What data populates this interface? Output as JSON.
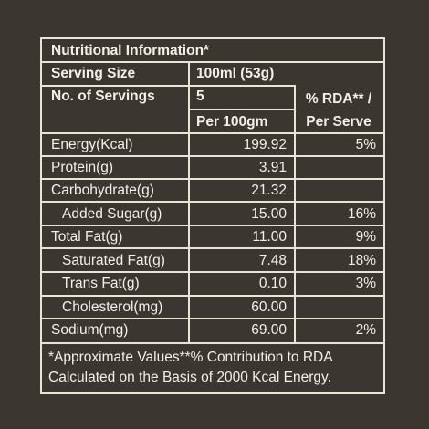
{
  "title": "Nutritional Information*",
  "serving_size_label": "Serving Size",
  "serving_size_value": "100ml (53g)",
  "servings_label": "No. of Servings",
  "servings_value": "5",
  "rda_header_line1": "% RDA** /",
  "rda_header_line2": "Per Serve",
  "per100_header": "Per 100gm",
  "rows": [
    {
      "label": "Energy(Kcal)",
      "value": "199.92",
      "rda": "5%"
    },
    {
      "label": "Protein(g)",
      "value": "3.91",
      "rda": ""
    },
    {
      "label": "Carbohydrate(g)",
      "value": "21.32",
      "rda": ""
    },
    {
      "label": "Added Sugar(g)",
      "value": "15.00",
      "rda": "16%"
    },
    {
      "label": "Total Fat(g)",
      "value": "11.00",
      "rda": "9%"
    },
    {
      "label": "Saturated Fat(g)",
      "value": "7.48",
      "rda": "18%"
    },
    {
      "label": "Trans Fat(g)",
      "value": "0.10",
      "rda": "3%"
    },
    {
      "label": "Cholesterol(mg)",
      "value": "60.00",
      "rda": ""
    },
    {
      "label": "Sodium(mg)",
      "value": "69.00",
      "rda": "2%"
    }
  ],
  "footnote_line1": "*Approximate Values**% Contribution to RDA",
  "footnote_line2": "Calculated on the Basis of 2000 Kcal Energy."
}
